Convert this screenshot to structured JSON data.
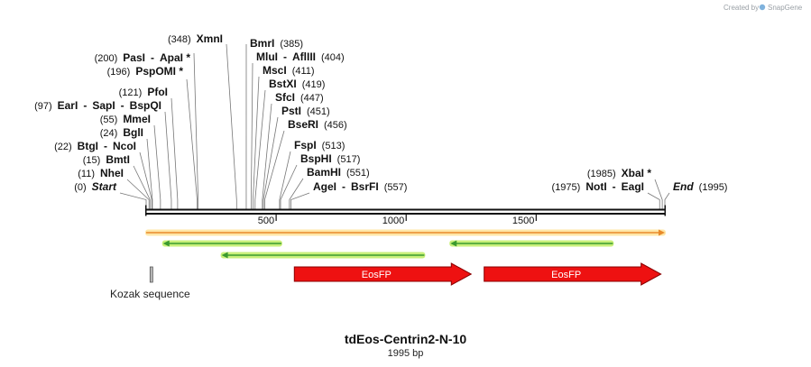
{
  "credit": {
    "text": "Created by",
    "brand": "SnapGene"
  },
  "map": {
    "title": "tdEos-Centrin2-N-10",
    "length_label": "1995 bp",
    "length": 1995,
    "ticks": [
      {
        "value": 500,
        "label": "500"
      },
      {
        "value": 1000,
        "label": "1000"
      },
      {
        "value": 1500,
        "label": "1500"
      }
    ]
  },
  "sites": [
    {
      "pos": 0,
      "pos_label": "(0)",
      "names": [
        "Start"
      ],
      "italic": true
    },
    {
      "pos": 11,
      "pos_label": "(11)",
      "names": [
        "NheI"
      ]
    },
    {
      "pos": 15,
      "pos_label": "(15)",
      "names": [
        "BmtI"
      ]
    },
    {
      "pos": 22,
      "pos_label": "(22)",
      "names": [
        "BtgI",
        "NcoI"
      ]
    },
    {
      "pos": 24,
      "pos_label": "(24)",
      "names": [
        "BglI"
      ]
    },
    {
      "pos": 55,
      "pos_label": "(55)",
      "names": [
        "MmeI"
      ]
    },
    {
      "pos": 97,
      "pos_label": "(97)",
      "names": [
        "EarI",
        "SapI",
        "BspQI"
      ]
    },
    {
      "pos": 121,
      "pos_label": "(121)",
      "names": [
        "PfoI"
      ]
    },
    {
      "pos": 196,
      "pos_label": "(196)",
      "names": [
        "PspOMI *"
      ]
    },
    {
      "pos": 200,
      "pos_label": "(200)",
      "names": [
        "PasI",
        "ApaI *"
      ]
    },
    {
      "pos": 348,
      "pos_label": "(348)",
      "names": [
        "XmnI"
      ]
    },
    {
      "pos": 385,
      "pos_label": "(385)",
      "names": [
        "BmrI"
      ]
    },
    {
      "pos": 404,
      "pos_label": "(404)",
      "names": [
        "MluI",
        "AflIII"
      ]
    },
    {
      "pos": 411,
      "pos_label": "(411)",
      "names": [
        "MscI"
      ]
    },
    {
      "pos": 419,
      "pos_label": "(419)",
      "names": [
        "BstXI"
      ]
    },
    {
      "pos": 447,
      "pos_label": "(447)",
      "names": [
        "SfcI"
      ]
    },
    {
      "pos": 451,
      "pos_label": "(451)",
      "names": [
        "PstI"
      ]
    },
    {
      "pos": 456,
      "pos_label": "(456)",
      "names": [
        "BseRI"
      ]
    },
    {
      "pos": 513,
      "pos_label": "(513)",
      "names": [
        "FspI"
      ]
    },
    {
      "pos": 517,
      "pos_label": "(517)",
      "names": [
        "BspHI"
      ]
    },
    {
      "pos": 551,
      "pos_label": "(551)",
      "names": [
        "BamHI"
      ]
    },
    {
      "pos": 557,
      "pos_label": "(557)",
      "names": [
        "AgeI",
        "BsrFI"
      ]
    },
    {
      "pos": 1975,
      "pos_label": "(1975)",
      "names": [
        "NotI",
        "EagI"
      ]
    },
    {
      "pos": 1985,
      "pos_label": "(1985)",
      "names": [
        "XbaI *"
      ]
    },
    {
      "pos": 1995,
      "pos_label": "(1995)",
      "names": [
        "End"
      ],
      "italic": true
    }
  ],
  "features": [
    {
      "kind": "orange-bar",
      "start": 0,
      "end": 1995,
      "direction": "forward",
      "color": "#e88a2a",
      "glow": "#ffe7a8"
    },
    {
      "kind": "primer",
      "start": 65,
      "end": 520,
      "direction": "reverse",
      "color": "#3b9a2f",
      "glow": "#c9f07a"
    },
    {
      "kind": "primer",
      "start": 1170,
      "end": 1795,
      "direction": "reverse",
      "color": "#3b9a2f",
      "glow": "#c9f07a"
    },
    {
      "kind": "primer",
      "start": 290,
      "end": 1070,
      "direction": "reverse",
      "color": "#3b9a2f",
      "glow": "#c9f07a"
    },
    {
      "kind": "gray-box",
      "start": 15,
      "end": 25,
      "label": "Kozak sequence",
      "color": "#b8b8b8"
    },
    {
      "kind": "cds",
      "start": 570,
      "end": 1250,
      "direction": "forward",
      "label": "EosFP",
      "color": "#ee1111"
    },
    {
      "kind": "cds",
      "start": 1300,
      "end": 1980,
      "direction": "forward",
      "label": "EosFP",
      "color": "#ee1111"
    }
  ]
}
